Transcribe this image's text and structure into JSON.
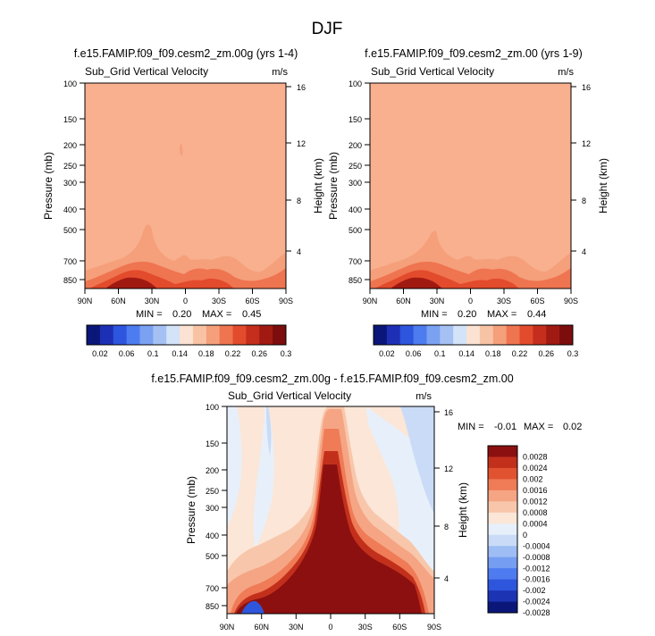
{
  "figure": {
    "title": "DJF",
    "units": "m/s",
    "variable": "Sub_Grid Vertical Velocity",
    "y_label_left": "Pressure (mb)",
    "y_label_right": "Height (km)",
    "pressure_ticks": [
      "100",
      "150",
      "200",
      "250",
      "300",
      "400",
      "500",
      "700",
      "850"
    ],
    "height_ticks": [
      "16",
      "12",
      "8",
      "4"
    ],
    "lat_ticks": [
      "90N",
      "60N",
      "30N",
      "0",
      "30S",
      "60S",
      "90S"
    ]
  },
  "panels": [
    {
      "title": "f.e15.FAMIP.f09_f09.cesm2_zm.00g (yrs 1-4)",
      "min_label": "MIN =",
      "min": "0.20",
      "max_label": "MAX =",
      "max": "0.45",
      "colorbar_labels": [
        "0.02",
        "0.06",
        "0.1",
        "0.14",
        "0.18",
        "0.22",
        "0.26",
        "0.3"
      ]
    },
    {
      "title": "f.e15.FAMIP.f09_f09.cesm2_zm.00 (yrs 1-9)",
      "min_label": "MIN =",
      "min": "0.20",
      "max_label": "MAX =",
      "max": "0.44",
      "colorbar_labels": [
        "0.02",
        "0.06",
        "0.1",
        "0.14",
        "0.18",
        "0.22",
        "0.26",
        "0.3"
      ]
    },
    {
      "title": "f.e15.FAMIP.f09_f09.cesm2_zm.00g - f.e15.FAMIP.f09_f09.cesm2_zm.00",
      "min_label": "MIN =",
      "min": "-0.01",
      "max_label": "MAX =",
      "max": "0.02",
      "colorbar_labels": [
        "0.0028",
        "0.0024",
        "0.002",
        "0.0016",
        "0.0012",
        "0.0008",
        "0.0004",
        "0",
        "-0.0004",
        "-0.0008",
        "-0.0012",
        "-0.0016",
        "-0.002",
        "-0.0024",
        "-0.0028"
      ]
    }
  ],
  "chart_data": [
    {
      "type": "heatmap",
      "title": "f.e15.FAMIP.f09_f09.cesm2_zm.00g (yrs 1-4)",
      "xlabel": "",
      "ylabel": "Pressure (mb)",
      "x_range": [
        "90N",
        "90S"
      ],
      "ylim": [
        1000,
        100
      ],
      "background_value_range": [
        0.18,
        0.22
      ],
      "peak_region": "surface to 700 mb between 60N and 0",
      "min": 0.2,
      "max": 0.45
    },
    {
      "type": "heatmap",
      "title": "f.e15.FAMIP.f09_f09.cesm2_zm.00 (yrs 1-9)",
      "xlabel": "",
      "ylabel": "Pressure (mb)",
      "x_range": [
        "90N",
        "90S"
      ],
      "ylim": [
        1000,
        100
      ],
      "background_value_range": [
        0.18,
        0.22
      ],
      "peak_region": "surface to 700 mb between 60N and 0",
      "min": 0.2,
      "max": 0.44
    },
    {
      "type": "heatmap",
      "title": "f.e15.FAMIP.f09_f09.cesm2_zm.00g - f.e15.FAMIP.f09_f09.cesm2_zm.00",
      "xlabel": "",
      "ylabel": "Pressure (mb)",
      "x_range": [
        "90N",
        "90S"
      ],
      "ylim": [
        1000,
        100
      ],
      "peak_region": "strong positive column near equator and lower troposphere 30N-30S",
      "min": -0.01,
      "max": 0.02
    }
  ],
  "colors": {
    "seq": [
      "#0a1778",
      "#1d30b5",
      "#2d55dd",
      "#4d7cf0",
      "#7aa1f2",
      "#a5c1f4",
      "#d3e3f8",
      "#fbe2d2",
      "#f8c3a5",
      "#f59f7b",
      "#ef7450",
      "#e24b2c",
      "#c52e1c",
      "#a11a12",
      "#7d0c0c"
    ],
    "diff": [
      "#0a1778",
      "#1c33b3",
      "#2e56dd",
      "#4e7cf0",
      "#759ef2",
      "#9ebdf4",
      "#c9dbf6",
      "#e7f0fa",
      "#fbe6d8",
      "#f8c7ab",
      "#f5a584",
      "#ef7b57",
      "#e05230",
      "#c2301c",
      "#8c1010"
    ],
    "panel_bg": "#f8b08e"
  }
}
